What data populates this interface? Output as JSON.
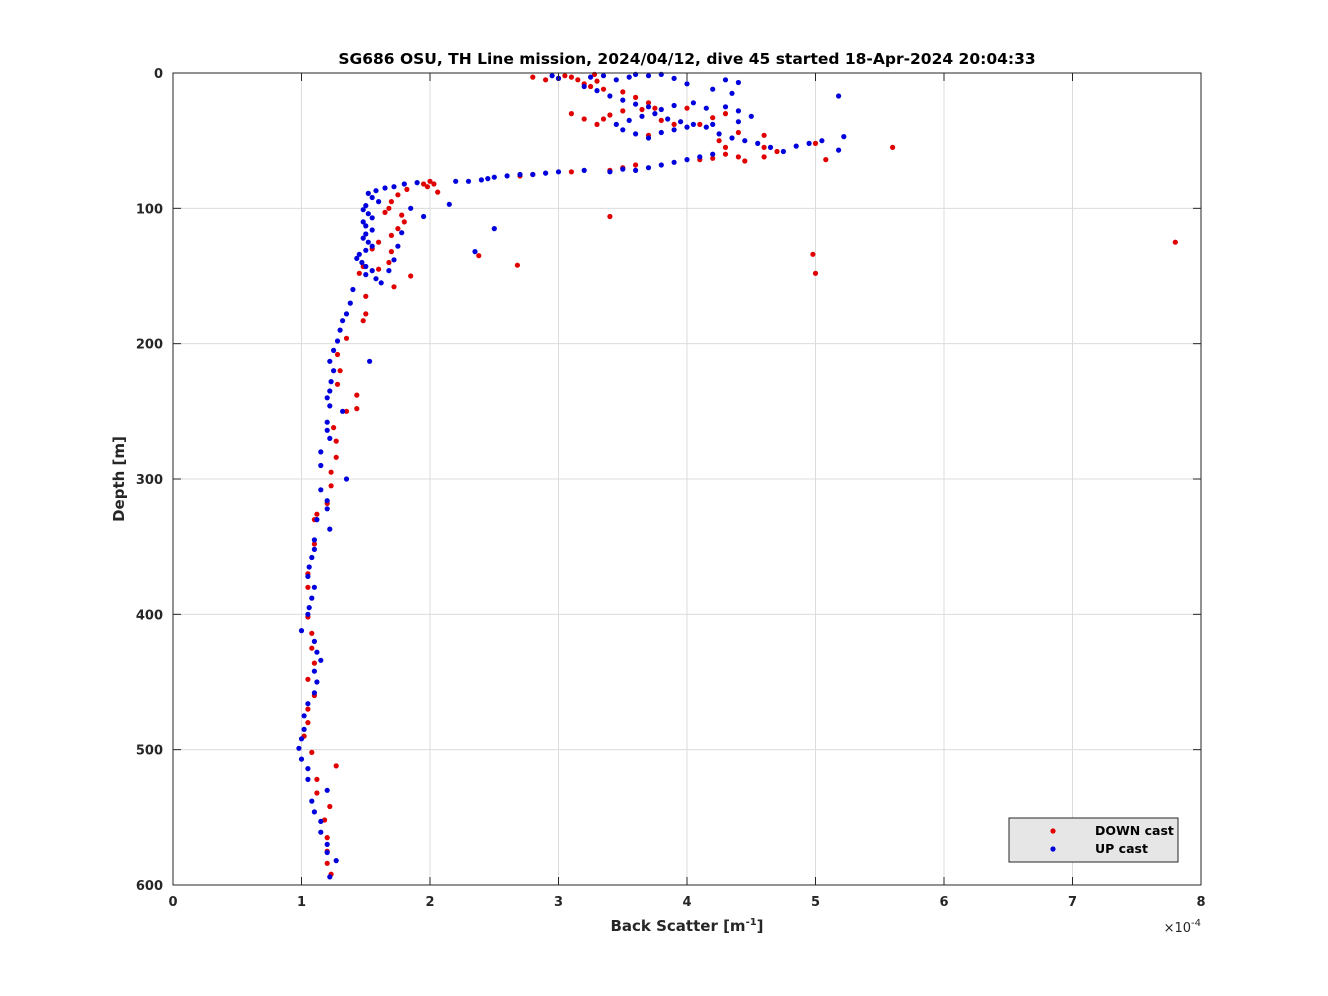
{
  "chart_data": {
    "type": "scatter",
    "title": "SG686 OSU, TH Line mission, 2024/04/12, dive 45 started 18-Apr-2024 20:04:33",
    "xlabel": "Back Scatter [m",
    "xlabel_sup": "-1",
    "xlabel_end": "]",
    "ylabel": "Depth [m]",
    "x_exponent_prefix": "×10",
    "x_exponent_power": "-4",
    "xlim": [
      0,
      8
    ],
    "ylim": [
      0,
      600
    ],
    "y_reversed": true,
    "x_ticks": [
      0,
      1,
      2,
      3,
      4,
      5,
      6,
      7,
      8
    ],
    "y_ticks": [
      0,
      100,
      200,
      300,
      400,
      500,
      600
    ],
    "grid": true,
    "legend_position": "bottom-right",
    "series": [
      {
        "name": "DOWN cast",
        "color": "#e00000",
        "points": [
          [
            2.8,
            3
          ],
          [
            2.9,
            5
          ],
          [
            3.0,
            4
          ],
          [
            3.05,
            2
          ],
          [
            3.1,
            3
          ],
          [
            3.15,
            5
          ],
          [
            3.2,
            8
          ],
          [
            3.25,
            10
          ],
          [
            3.3,
            6
          ],
          [
            3.35,
            12
          ],
          [
            3.28,
            1
          ],
          [
            3.1,
            30
          ],
          [
            3.2,
            34
          ],
          [
            3.35,
            34
          ],
          [
            3.4,
            31
          ],
          [
            3.3,
            38
          ],
          [
            3.5,
            14
          ],
          [
            3.6,
            18
          ],
          [
            3.7,
            22
          ],
          [
            3.5,
            28
          ],
          [
            3.65,
            27
          ],
          [
            3.75,
            26
          ],
          [
            3.8,
            35
          ],
          [
            3.9,
            38
          ],
          [
            3.7,
            46
          ],
          [
            4.0,
            26
          ],
          [
            4.1,
            38
          ],
          [
            4.2,
            33
          ],
          [
            4.3,
            30
          ],
          [
            4.4,
            44
          ],
          [
            4.6,
            46
          ],
          [
            4.25,
            50
          ],
          [
            4.3,
            55
          ],
          [
            4.3,
            60
          ],
          [
            4.4,
            62
          ],
          [
            4.6,
            55
          ],
          [
            4.7,
            58
          ],
          [
            4.2,
            63
          ],
          [
            4.45,
            65
          ],
          [
            4.6,
            62
          ],
          [
            5.0,
            52
          ],
          [
            5.08,
            64
          ],
          [
            5.6,
            55
          ],
          [
            4.1,
            64
          ],
          [
            3.6,
            68
          ],
          [
            3.5,
            70
          ],
          [
            3.4,
            72
          ],
          [
            3.1,
            73
          ],
          [
            2.8,
            75
          ],
          [
            2.7,
            76
          ],
          [
            2.0,
            80
          ],
          [
            1.95,
            82
          ],
          [
            2.03,
            82
          ],
          [
            2.06,
            88
          ],
          [
            1.98,
            84
          ],
          [
            1.82,
            86
          ],
          [
            1.75,
            90
          ],
          [
            1.7,
            95
          ],
          [
            1.68,
            100
          ],
          [
            1.65,
            103
          ],
          [
            1.78,
            105
          ],
          [
            1.8,
            110
          ],
          [
            1.75,
            115
          ],
          [
            1.7,
            120
          ],
          [
            1.6,
            125
          ],
          [
            1.55,
            130
          ],
          [
            1.7,
            132
          ],
          [
            1.68,
            140
          ],
          [
            1.6,
            145
          ],
          [
            1.48,
            143
          ],
          [
            1.45,
            148
          ],
          [
            1.85,
            150
          ],
          [
            1.72,
            158
          ],
          [
            3.4,
            106
          ],
          [
            2.38,
            135
          ],
          [
            2.68,
            142
          ],
          [
            4.98,
            134
          ],
          [
            5.0,
            148
          ],
          [
            7.8,
            125
          ],
          [
            1.5,
            165
          ],
          [
            1.5,
            178
          ],
          [
            1.48,
            183
          ],
          [
            1.35,
            196
          ],
          [
            1.28,
            208
          ],
          [
            1.3,
            220
          ],
          [
            1.28,
            230
          ],
          [
            1.43,
            238
          ],
          [
            1.43,
            248
          ],
          [
            1.35,
            250
          ],
          [
            1.25,
            262
          ],
          [
            1.27,
            272
          ],
          [
            1.27,
            284
          ],
          [
            1.23,
            295
          ],
          [
            1.23,
            305
          ],
          [
            1.2,
            318
          ],
          [
            1.12,
            326
          ],
          [
            1.1,
            330
          ],
          [
            1.1,
            348
          ],
          [
            1.05,
            370
          ],
          [
            1.05,
            380
          ],
          [
            1.05,
            402
          ],
          [
            1.08,
            414
          ],
          [
            1.08,
            425
          ],
          [
            1.1,
            436
          ],
          [
            1.05,
            448
          ],
          [
            1.1,
            460
          ],
          [
            1.05,
            470
          ],
          [
            1.05,
            480
          ],
          [
            1.02,
            490
          ],
          [
            1.08,
            502
          ],
          [
            1.27,
            512
          ],
          [
            1.12,
            522
          ],
          [
            1.12,
            532
          ],
          [
            1.22,
            542
          ],
          [
            1.18,
            552
          ],
          [
            1.2,
            565
          ],
          [
            1.2,
            575
          ],
          [
            1.2,
            584
          ],
          [
            1.23,
            592
          ]
        ]
      },
      {
        "name": "UP cast",
        "color": "#0000dd",
        "points": [
          [
            2.95,
            2
          ],
          [
            3.0,
            4
          ],
          [
            3.25,
            3
          ],
          [
            3.35,
            2
          ],
          [
            3.45,
            5
          ],
          [
            3.55,
            3
          ],
          [
            3.6,
            1
          ],
          [
            3.7,
            2
          ],
          [
            3.8,
            1
          ],
          [
            3.9,
            4
          ],
          [
            4.0,
            8
          ],
          [
            4.3,
            5
          ],
          [
            4.4,
            7
          ],
          [
            4.2,
            12
          ],
          [
            4.35,
            15
          ],
          [
            5.18,
            17
          ],
          [
            3.2,
            10
          ],
          [
            3.3,
            13
          ],
          [
            3.4,
            17
          ],
          [
            3.5,
            20
          ],
          [
            3.6,
            23
          ],
          [
            3.7,
            25
          ],
          [
            3.8,
            27
          ],
          [
            3.9,
            24
          ],
          [
            4.05,
            22
          ],
          [
            4.15,
            26
          ],
          [
            4.3,
            25
          ],
          [
            4.4,
            28
          ],
          [
            4.5,
            32
          ],
          [
            4.4,
            36
          ],
          [
            4.2,
            38
          ],
          [
            4.0,
            40
          ],
          [
            3.9,
            42
          ],
          [
            3.8,
            44
          ],
          [
            3.7,
            48
          ],
          [
            3.6,
            45
          ],
          [
            3.5,
            42
          ],
          [
            3.45,
            38
          ],
          [
            3.55,
            35
          ],
          [
            3.65,
            32
          ],
          [
            3.75,
            30
          ],
          [
            3.85,
            34
          ],
          [
            3.95,
            36
          ],
          [
            4.05,
            38
          ],
          [
            4.15,
            40
          ],
          [
            4.25,
            45
          ],
          [
            4.35,
            48
          ],
          [
            4.45,
            50
          ],
          [
            4.55,
            52
          ],
          [
            4.65,
            55
          ],
          [
            4.75,
            58
          ],
          [
            4.85,
            54
          ],
          [
            4.95,
            52
          ],
          [
            5.05,
            50
          ],
          [
            5.22,
            47
          ],
          [
            5.18,
            57
          ],
          [
            4.2,
            60
          ],
          [
            4.1,
            62
          ],
          [
            4.0,
            64
          ],
          [
            3.9,
            66
          ],
          [
            3.8,
            68
          ],
          [
            3.7,
            70
          ],
          [
            3.6,
            72
          ],
          [
            3.5,
            71
          ],
          [
            3.4,
            73
          ],
          [
            3.2,
            72
          ],
          [
            3.0,
            73
          ],
          [
            2.9,
            74
          ],
          [
            2.8,
            75
          ],
          [
            2.7,
            75
          ],
          [
            2.6,
            76
          ],
          [
            2.5,
            77
          ],
          [
            2.45,
            78
          ],
          [
            2.4,
            79
          ],
          [
            2.3,
            80
          ],
          [
            2.2,
            80
          ],
          [
            1.9,
            81
          ],
          [
            1.8,
            82
          ],
          [
            1.72,
            84
          ],
          [
            1.65,
            85
          ],
          [
            1.58,
            87
          ],
          [
            1.52,
            89
          ],
          [
            1.55,
            92
          ],
          [
            1.6,
            95
          ],
          [
            1.5,
            98
          ],
          [
            1.48,
            101
          ],
          [
            1.52,
            104
          ],
          [
            1.55,
            107
          ],
          [
            1.48,
            110
          ],
          [
            1.5,
            113
          ],
          [
            1.55,
            116
          ],
          [
            1.5,
            119
          ],
          [
            1.48,
            122
          ],
          [
            1.52,
            125
          ],
          [
            1.55,
            128
          ],
          [
            1.5,
            131
          ],
          [
            1.45,
            134
          ],
          [
            1.43,
            137
          ],
          [
            1.47,
            140
          ],
          [
            1.5,
            143
          ],
          [
            1.55,
            146
          ],
          [
            1.5,
            149
          ],
          [
            1.58,
            152
          ],
          [
            1.62,
            155
          ],
          [
            1.68,
            146
          ],
          [
            1.72,
            138
          ],
          [
            1.75,
            128
          ],
          [
            1.78,
            118
          ],
          [
            1.85,
            100
          ],
          [
            1.95,
            106
          ],
          [
            2.15,
            97
          ],
          [
            2.5,
            115
          ],
          [
            2.35,
            132
          ],
          [
            1.4,
            160
          ],
          [
            1.38,
            170
          ],
          [
            1.35,
            178
          ],
          [
            1.32,
            183
          ],
          [
            1.3,
            190
          ],
          [
            1.28,
            198
          ],
          [
            1.25,
            205
          ],
          [
            1.22,
            213
          ],
          [
            1.53,
            213
          ],
          [
            1.25,
            220
          ],
          [
            1.23,
            228
          ],
          [
            1.22,
            235
          ],
          [
            1.2,
            240
          ],
          [
            1.22,
            246
          ],
          [
            1.32,
            250
          ],
          [
            1.2,
            258
          ],
          [
            1.2,
            264
          ],
          [
            1.22,
            270
          ],
          [
            1.15,
            280
          ],
          [
            1.15,
            290
          ],
          [
            1.35,
            300
          ],
          [
            1.15,
            308
          ],
          [
            1.2,
            316
          ],
          [
            1.2,
            322
          ],
          [
            1.12,
            330
          ],
          [
            1.22,
            337
          ],
          [
            1.1,
            345
          ],
          [
            1.1,
            352
          ],
          [
            1.08,
            358
          ],
          [
            1.06,
            365
          ],
          [
            1.05,
            372
          ],
          [
            1.1,
            380
          ],
          [
            1.08,
            388
          ],
          [
            1.06,
            395
          ],
          [
            1.05,
            400
          ],
          [
            1.0,
            412
          ],
          [
            1.1,
            420
          ],
          [
            1.12,
            428
          ],
          [
            1.15,
            434
          ],
          [
            1.1,
            442
          ],
          [
            1.12,
            450
          ],
          [
            1.1,
            458
          ],
          [
            1.05,
            466
          ],
          [
            1.02,
            475
          ],
          [
            1.02,
            485
          ],
          [
            1.0,
            492
          ],
          [
            0.98,
            499
          ],
          [
            1.0,
            507
          ],
          [
            1.05,
            514
          ],
          [
            1.05,
            522
          ],
          [
            1.2,
            530
          ],
          [
            1.08,
            538
          ],
          [
            1.1,
            546
          ],
          [
            1.15,
            553
          ],
          [
            1.15,
            561
          ],
          [
            1.2,
            570
          ],
          [
            1.2,
            576
          ],
          [
            1.27,
            582
          ],
          [
            1.22,
            594
          ]
        ]
      }
    ]
  }
}
